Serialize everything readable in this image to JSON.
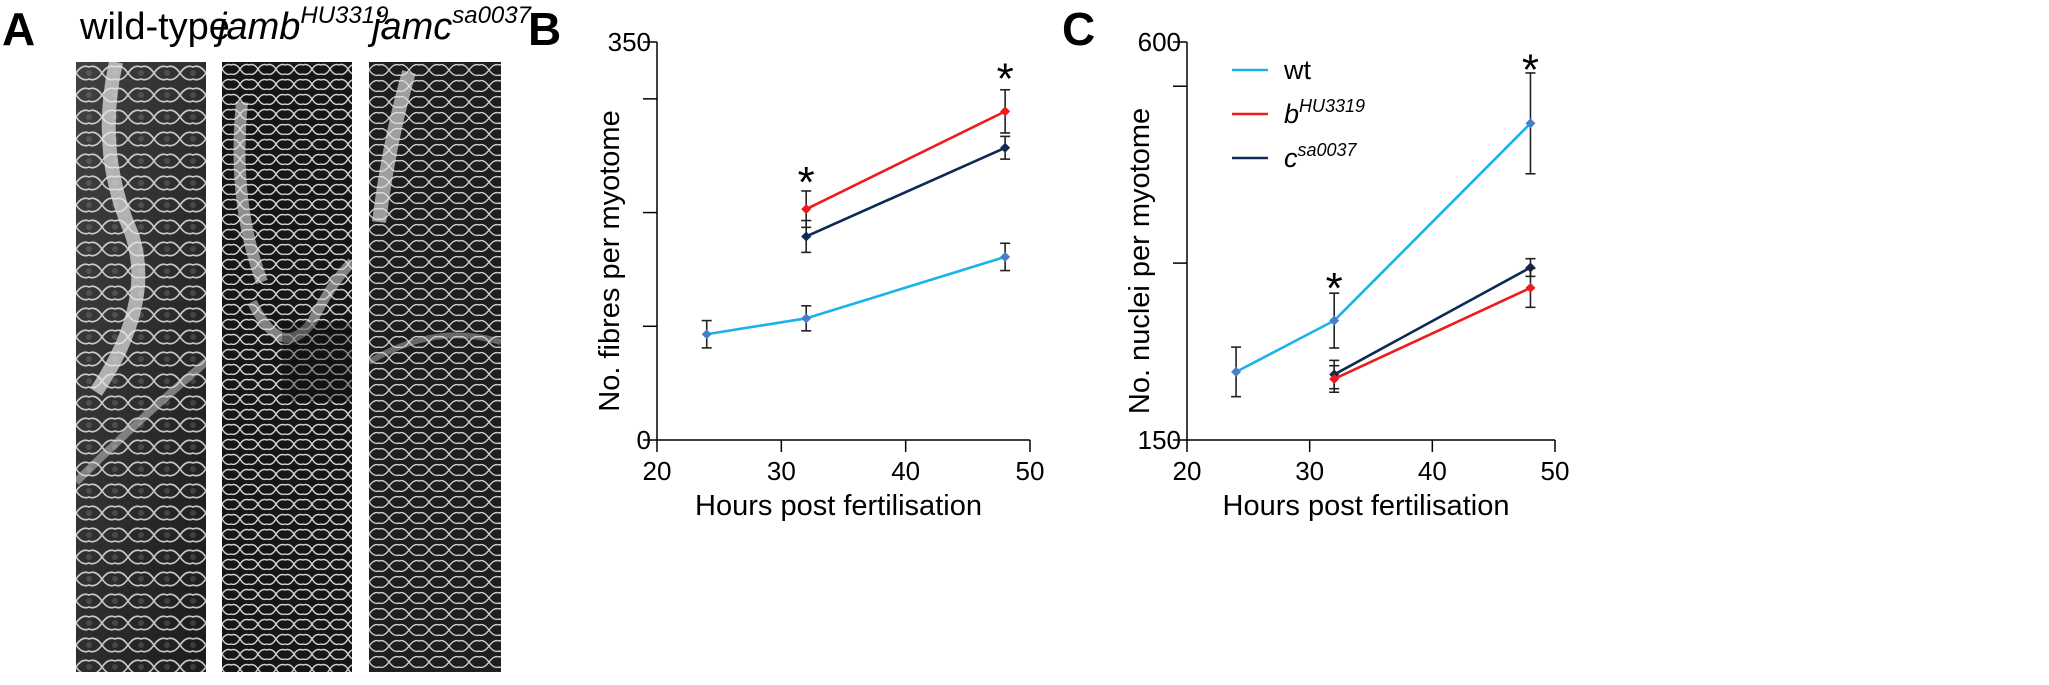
{
  "panels": {
    "a": {
      "label": "A"
    },
    "b": {
      "label": "B"
    },
    "c": {
      "label": "C"
    }
  },
  "micrographs": [
    {
      "title": "wild-type",
      "base": "wild-type",
      "sup": ""
    },
    {
      "title": "jambHU3319",
      "base": "jamb",
      "sup": "HU3319"
    },
    {
      "title": "jamcsa0037",
      "base": "jamc",
      "sup": "sa0037"
    }
  ],
  "colors": {
    "wt": "#1ab2ea",
    "b": "#ee1b1b",
    "c": "#0d2a55",
    "wt_marker": "#4a7fc8",
    "error_bar": "#222222"
  },
  "chart_data": [
    {
      "type": "line",
      "panel": "B",
      "xlabel": "Hours post fertilisation",
      "ylabel": "No. fibres per myotome",
      "xlim": [
        20,
        50
      ],
      "ylim": [
        0,
        350
      ],
      "xticks": [
        20,
        30,
        40,
        50
      ],
      "yticks": [
        0,
        100,
        200,
        300,
        350
      ],
      "ytick_labels": [
        "0",
        "",
        "",
        "",
        "350"
      ],
      "series": [
        {
          "key": "wt",
          "x": [
            24,
            32,
            48
          ],
          "y": [
            93,
            107,
            161
          ],
          "err": [
            12,
            11,
            12
          ]
        },
        {
          "key": "b",
          "x": [
            32,
            48
          ],
          "y": [
            203,
            289
          ],
          "err": [
            16,
            19
          ]
        },
        {
          "key": "c",
          "x": [
            32,
            48
          ],
          "y": [
            179,
            257
          ],
          "err": [
            14,
            10
          ]
        }
      ],
      "annotations": [
        {
          "text": "*",
          "x": 32,
          "y": 233
        },
        {
          "text": "*",
          "x": 48,
          "y": 324
        }
      ]
    },
    {
      "type": "line",
      "panel": "C",
      "xlabel": "Hours post fertilisation",
      "ylabel": "No. nuclei per myotome",
      "xlim": [
        20,
        50
      ],
      "ylim": [
        150,
        600
      ],
      "xticks": [
        20,
        30,
        40,
        50
      ],
      "yticks": [
        150,
        350,
        550,
        600
      ],
      "ytick_labels": [
        "150",
        "",
        "",
        "600"
      ],
      "legend": {
        "placement": "top-left",
        "entries": [
          {
            "key": "wt",
            "base": "wt",
            "sup": ""
          },
          {
            "key": "b",
            "base": "b",
            "sup": "HU3319"
          },
          {
            "key": "c",
            "base": "c",
            "sup": "sa0037"
          }
        ]
      },
      "series": [
        {
          "key": "wt",
          "x": [
            24,
            32,
            48
          ],
          "y": [
            227,
            285,
            508
          ],
          "err": [
            28,
            31,
            57
          ]
        },
        {
          "key": "c",
          "x": [
            32,
            48
          ],
          "y": [
            224,
            345
          ],
          "err": [
            16,
            10
          ]
        },
        {
          "key": "b",
          "x": [
            32,
            48
          ],
          "y": [
            219,
            322
          ],
          "err": [
            15,
            22
          ]
        }
      ],
      "annotations": [
        {
          "text": "*",
          "x": 32,
          "y": 330
        },
        {
          "text": "*",
          "x": 48,
          "y": 577
        }
      ]
    }
  ]
}
